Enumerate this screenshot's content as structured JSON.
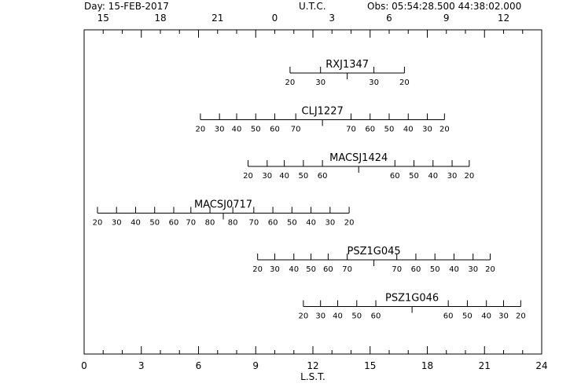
{
  "header": {
    "day": "Day: 15-FEB-2017",
    "utc": "U.T.C.",
    "obs": "Obs: 05:54:28.500   44:38:02.000"
  },
  "chart_data": {
    "type": "observability-chart",
    "xlabel": "L.S.T.",
    "x_range": [
      0,
      24
    ],
    "lst_ticks": [
      0,
      3,
      6,
      9,
      12,
      15,
      18,
      21,
      24
    ],
    "utc_ticks": [
      {
        "label": "15",
        "lst": 1.0
      },
      {
        "label": "18",
        "lst": 4.0
      },
      {
        "label": "21",
        "lst": 7.0
      },
      {
        "label": "0",
        "lst": 10.0
      },
      {
        "label": "3",
        "lst": 13.0
      },
      {
        "label": "6",
        "lst": 16.0
      },
      {
        "label": "9",
        "lst": 19.0
      },
      {
        "label": "12",
        "lst": 22.0
      }
    ],
    "targets": [
      {
        "name": "RXJ1347",
        "transit_lst": 13.8,
        "rise": [
          {
            "el": 20,
            "lst": 10.8
          },
          {
            "el": 30,
            "lst": 12.4
          }
        ],
        "set": [
          {
            "el": 30,
            "lst": 15.2
          },
          {
            "el": 20,
            "lst": 16.8
          }
        ]
      },
      {
        "name": "CLJ1227",
        "transit_lst": 12.5,
        "rise": [
          {
            "el": 20,
            "lst": 6.1
          },
          {
            "el": 30,
            "lst": 7.1
          },
          {
            "el": 40,
            "lst": 8.0
          },
          {
            "el": 50,
            "lst": 9.0
          },
          {
            "el": 60,
            "lst": 10.0
          },
          {
            "el": 70,
            "lst": 11.1
          }
        ],
        "set": [
          {
            "el": 70,
            "lst": 14.0
          },
          {
            "el": 60,
            "lst": 15.0
          },
          {
            "el": 50,
            "lst": 16.0
          },
          {
            "el": 40,
            "lst": 17.0
          },
          {
            "el": 30,
            "lst": 18.0
          },
          {
            "el": 20,
            "lst": 18.9
          }
        ]
      },
      {
        "name": "MACSJ1424",
        "transit_lst": 14.4,
        "rise": [
          {
            "el": 20,
            "lst": 8.6
          },
          {
            "el": 30,
            "lst": 9.6
          },
          {
            "el": 40,
            "lst": 10.5
          },
          {
            "el": 50,
            "lst": 11.5
          },
          {
            "el": 60,
            "lst": 12.5
          }
        ],
        "set": [
          {
            "el": 60,
            "lst": 16.3
          },
          {
            "el": 50,
            "lst": 17.3
          },
          {
            "el": 40,
            "lst": 18.3
          },
          {
            "el": 30,
            "lst": 19.3
          },
          {
            "el": 20,
            "lst": 20.2
          }
        ]
      },
      {
        "name": "MACSJ0717",
        "transit_lst": 7.3,
        "rise": [
          {
            "el": 20,
            "lst": 0.7
          },
          {
            "el": 30,
            "lst": 1.7
          },
          {
            "el": 40,
            "lst": 2.7
          },
          {
            "el": 50,
            "lst": 3.7
          },
          {
            "el": 60,
            "lst": 4.7
          },
          {
            "el": 70,
            "lst": 5.6
          },
          {
            "el": 80,
            "lst": 6.6
          }
        ],
        "set": [
          {
            "el": 80,
            "lst": 7.8
          },
          {
            "el": 70,
            "lst": 8.9
          },
          {
            "el": 60,
            "lst": 9.9
          },
          {
            "el": 50,
            "lst": 10.9
          },
          {
            "el": 40,
            "lst": 11.9
          },
          {
            "el": 30,
            "lst": 12.9
          },
          {
            "el": 20,
            "lst": 13.9
          }
        ]
      },
      {
        "name": "PSZ1G045",
        "transit_lst": 15.2,
        "rise": [
          {
            "el": 20,
            "lst": 9.1
          },
          {
            "el": 30,
            "lst": 10.0
          },
          {
            "el": 40,
            "lst": 11.0
          },
          {
            "el": 50,
            "lst": 11.9
          },
          {
            "el": 60,
            "lst": 12.8
          },
          {
            "el": 70,
            "lst": 13.8
          }
        ],
        "set": [
          {
            "el": 70,
            "lst": 16.4
          },
          {
            "el": 60,
            "lst": 17.4
          },
          {
            "el": 50,
            "lst": 18.4
          },
          {
            "el": 40,
            "lst": 19.4
          },
          {
            "el": 30,
            "lst": 20.4
          },
          {
            "el": 20,
            "lst": 21.3
          }
        ]
      },
      {
        "name": "PSZ1G046",
        "transit_lst": 17.2,
        "rise": [
          {
            "el": 20,
            "lst": 11.5
          },
          {
            "el": 30,
            "lst": 12.4
          },
          {
            "el": 40,
            "lst": 13.3
          },
          {
            "el": 50,
            "lst": 14.3
          },
          {
            "el": 60,
            "lst": 15.3
          }
        ],
        "set": [
          {
            "el": 60,
            "lst": 19.1
          },
          {
            "el": 50,
            "lst": 20.1
          },
          {
            "el": 40,
            "lst": 21.1
          },
          {
            "el": 30,
            "lst": 22.0
          },
          {
            "el": 20,
            "lst": 22.9
          }
        ]
      }
    ]
  }
}
